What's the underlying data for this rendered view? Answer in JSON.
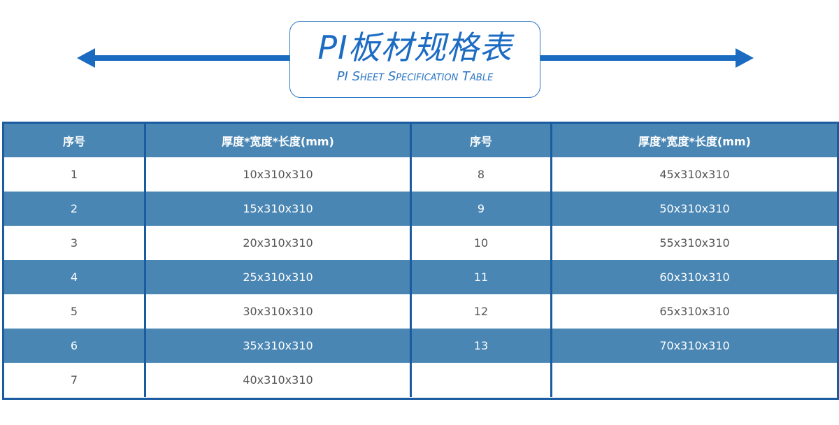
{
  "title": {
    "cn": "PI板材规格表",
    "en": "PI Sheet Specification Table"
  },
  "colors": {
    "accent": "#1b6cc0",
    "row_fill": "#4a86b3",
    "border": "#1a5c9f"
  },
  "table": {
    "headers": [
      "序号",
      "厚度*宽度*长度(mm)",
      "序号",
      "厚度*宽度*长度(mm)"
    ],
    "rows": [
      [
        "1",
        "10x310x310",
        "8",
        "45x310x310"
      ],
      [
        "2",
        "15x310x310",
        "9",
        "50x310x310"
      ],
      [
        "3",
        "20x310x310",
        "10",
        "55x310x310"
      ],
      [
        "4",
        "25x310x310",
        "11",
        "60x310x310"
      ],
      [
        "5",
        "30x310x310",
        "12",
        "65x310x310"
      ],
      [
        "6",
        "35x310x310",
        "13",
        "70x310x310"
      ],
      [
        "7",
        "40x310x310",
        "",
        ""
      ]
    ]
  }
}
